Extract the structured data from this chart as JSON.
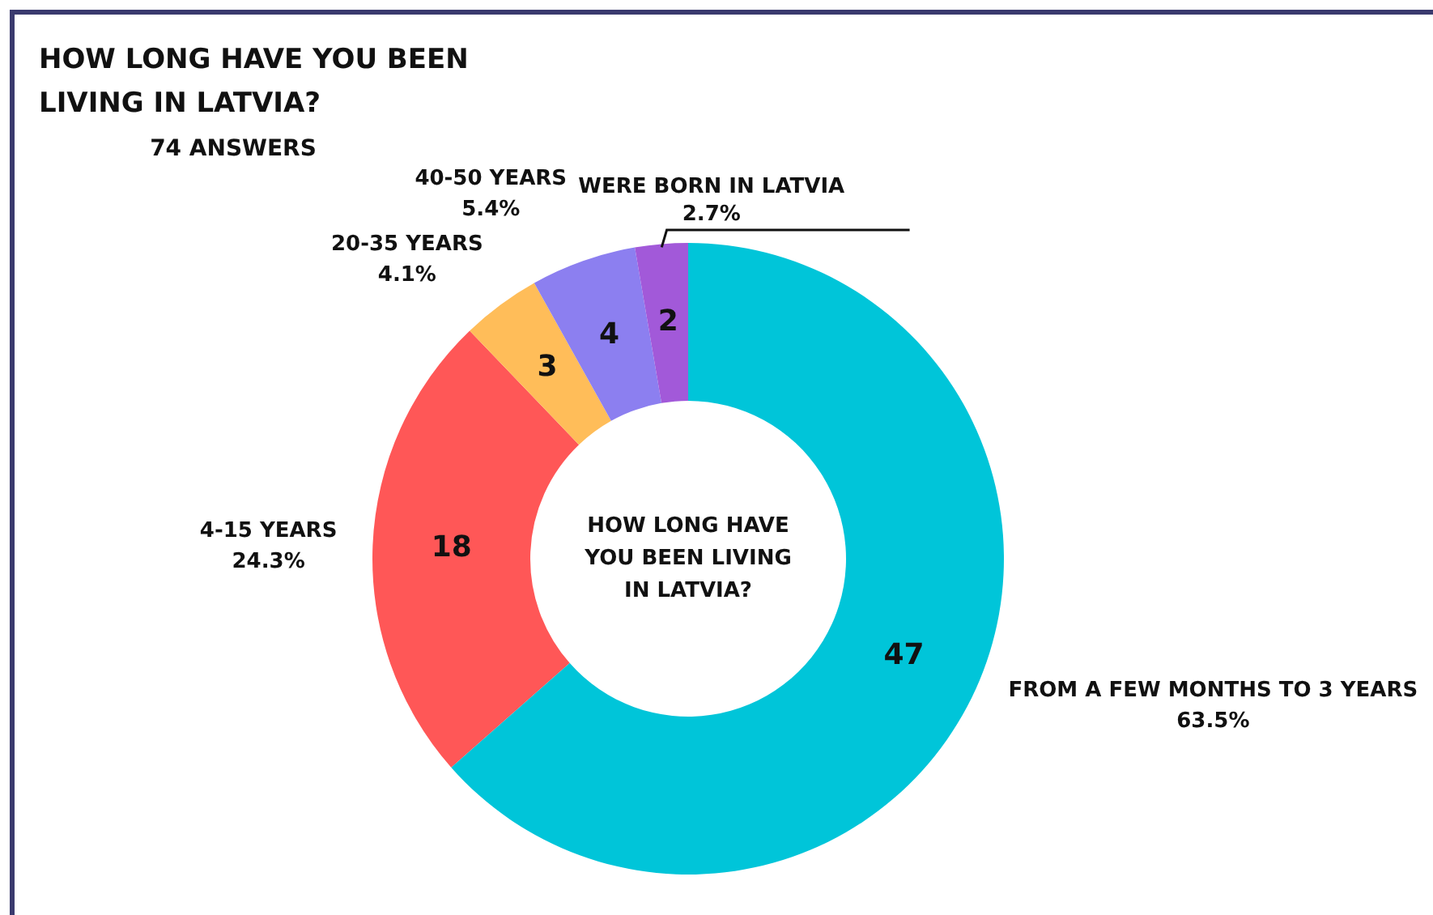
{
  "chart_data": {
    "type": "donut",
    "title": "HOW LONG HAVE YOU BEEN LIVING IN LATVIA?",
    "subtitle": "74 ANSWERS",
    "categories": [
      "FROM A FEW MONTHS TO 3 YEARS",
      "4-15 YEARS",
      "20-35 YEARS",
      "40-50 YEARS",
      "WERE BORN IN LATVIA"
    ],
    "values": [
      47,
      18,
      3,
      4,
      2
    ],
    "colors": [
      "#00c5d9",
      "#ff5757",
      "#ffbd59",
      "#8c7ff0",
      "#a259d9"
    ],
    "data_labels": true,
    "legend": false,
    "annotations": [
      {
        "text": "63.5%",
        "x": "FROM A FEW MONTHS TO 3 YEARS"
      },
      {
        "text": "24.3%",
        "x": "4-15 YEARS"
      },
      {
        "text": "4.1%",
        "x": "20-35 YEARS"
      },
      {
        "text": "5.4%",
        "x": "40-50 YEARS"
      },
      {
        "text": "2.7%",
        "x": "WERE BORN IN LATVIA"
      },
      "HOW LONG HAVE YOU BEEN LIVING IN LATVIA?"
    ]
  }
}
